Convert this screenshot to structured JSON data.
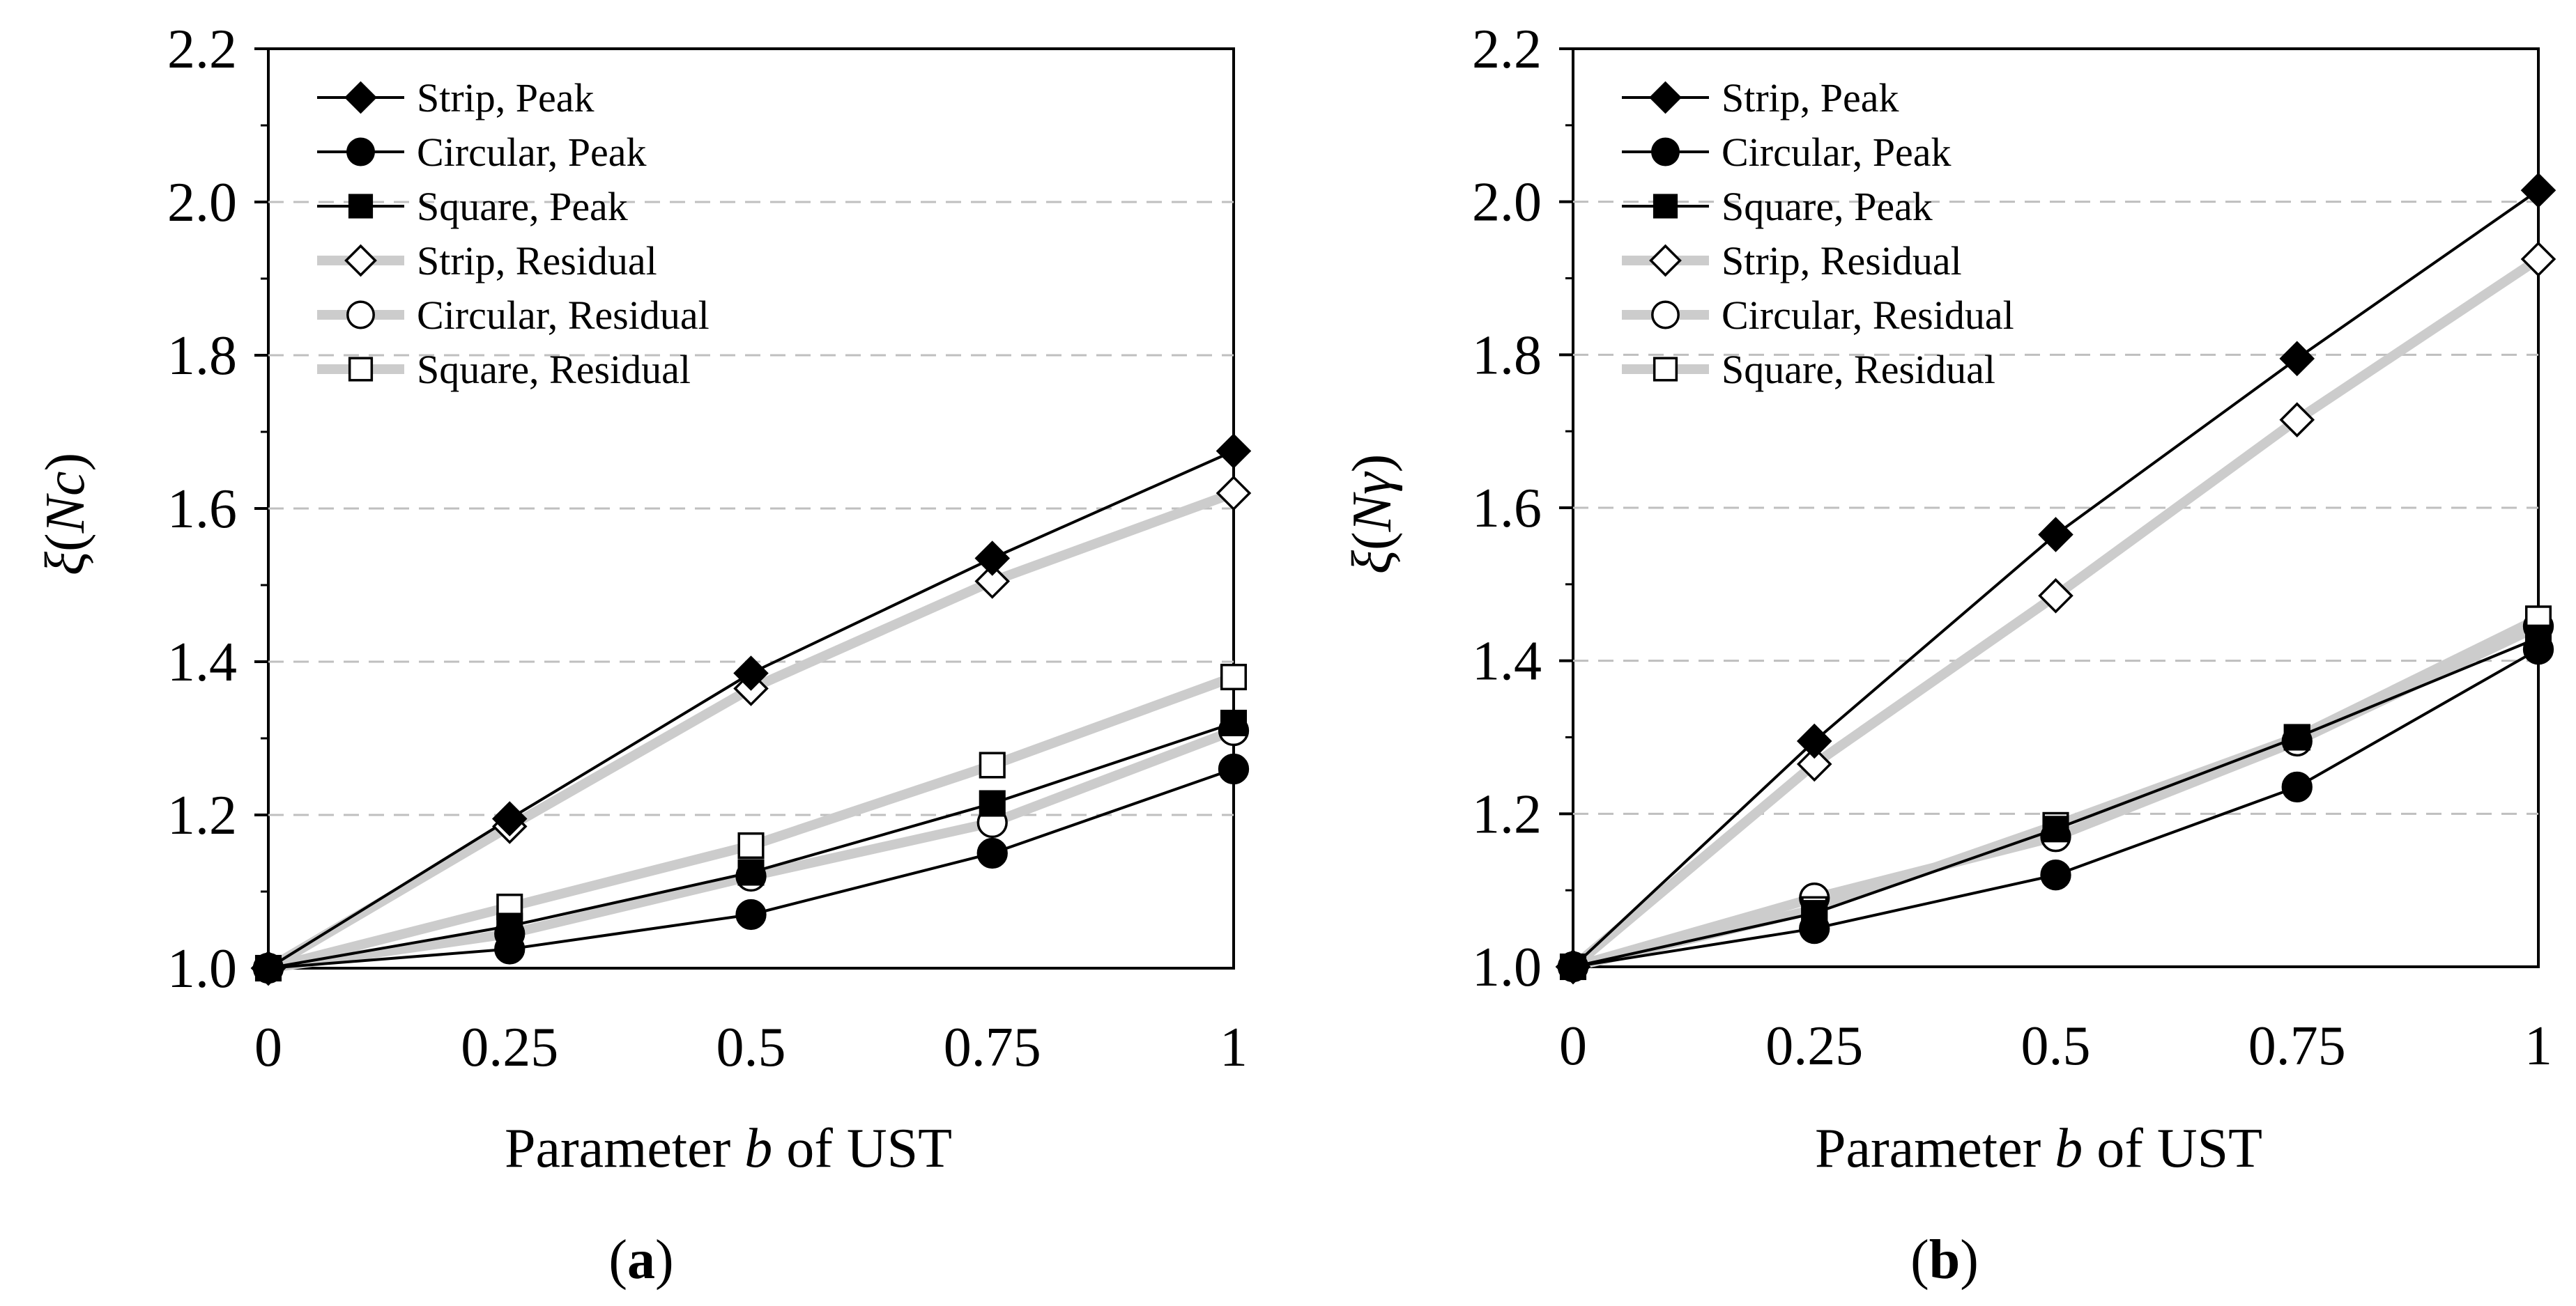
{
  "chart_data": [
    {
      "type": "line",
      "caption_label": "a",
      "ylabel_prefix": "ξ",
      "ylabel_arg": "Nc",
      "xlabel_prefix": "Parameter ",
      "xlabel_var": "b",
      "xlabel_suffix": " of UST",
      "categories": [
        "0",
        "0.25",
        "0.5",
        "0.75",
        "1"
      ],
      "x": [
        0,
        0.25,
        0.5,
        0.75,
        1
      ],
      "ylim": [
        1.0,
        2.2
      ],
      "yticks": [
        "1.0",
        "1.2",
        "1.4",
        "1.6",
        "1.8",
        "2.0",
        "2.2"
      ],
      "legend_position": "top-left",
      "series": [
        {
          "name": "Strip, Peak",
          "marker": "diamond",
          "filled": true,
          "line": "black",
          "values": [
            1.0,
            1.195,
            1.385,
            1.535,
            1.675
          ]
        },
        {
          "name": "Circular, Peak",
          "marker": "circle",
          "filled": true,
          "line": "black",
          "values": [
            1.0,
            1.025,
            1.07,
            1.15,
            1.26
          ]
        },
        {
          "name": "Square, Peak",
          "marker": "square",
          "filled": true,
          "line": "black",
          "values": [
            1.0,
            1.055,
            1.125,
            1.215,
            1.32
          ]
        },
        {
          "name": "Strip, Residual",
          "marker": "diamond",
          "filled": false,
          "line": "gray",
          "values": [
            1.0,
            1.185,
            1.365,
            1.505,
            1.62
          ]
        },
        {
          "name": "Circular, Residual",
          "marker": "circle",
          "filled": false,
          "line": "gray",
          "values": [
            1.0,
            1.045,
            1.12,
            1.19,
            1.31
          ]
        },
        {
          "name": "Square, Residual",
          "marker": "square",
          "filled": false,
          "line": "gray",
          "values": [
            1.0,
            1.08,
            1.16,
            1.265,
            1.38
          ]
        }
      ]
    },
    {
      "type": "line",
      "caption_label": "b",
      "ylabel_prefix": "ξ",
      "ylabel_arg": "Nγ",
      "xlabel_prefix": "Parameter ",
      "xlabel_var": "b",
      "xlabel_suffix": " of UST",
      "categories": [
        "0",
        "0.25",
        "0.5",
        "0.75",
        "1"
      ],
      "x": [
        0,
        0.25,
        0.5,
        0.75,
        1
      ],
      "ylim": [
        1.0,
        2.2
      ],
      "yticks": [
        "1.0",
        "1.2",
        "1.4",
        "1.6",
        "1.8",
        "2.0",
        "2.2"
      ],
      "legend_position": "top-left",
      "series": [
        {
          "name": "Strip, Peak",
          "marker": "diamond",
          "filled": true,
          "line": "black",
          "values": [
            1.0,
            1.295,
            1.565,
            1.795,
            2.015
          ]
        },
        {
          "name": "Circular, Peak",
          "marker": "circle",
          "filled": true,
          "line": "black",
          "values": [
            1.0,
            1.05,
            1.12,
            1.235,
            1.415
          ]
        },
        {
          "name": "Square, Peak",
          "marker": "square",
          "filled": true,
          "line": "black",
          "values": [
            1.0,
            1.07,
            1.18,
            1.3,
            1.43
          ]
        },
        {
          "name": "Strip, Residual",
          "marker": "diamond",
          "filled": false,
          "line": "gray",
          "values": [
            1.0,
            1.265,
            1.485,
            1.715,
            1.925
          ]
        },
        {
          "name": "Circular, Residual",
          "marker": "circle",
          "filled": false,
          "line": "gray",
          "values": [
            1.0,
            1.09,
            1.17,
            1.295,
            1.445
          ]
        },
        {
          "name": "Square, Residual",
          "marker": "square",
          "filled": false,
          "line": "gray",
          "values": [
            1.0,
            1.075,
            1.185,
            1.3,
            1.455
          ]
        }
      ]
    }
  ],
  "colors": {
    "peak_line": "#000000",
    "residual_line": "#cccccc",
    "grid": "#bfbfbf",
    "axis": "#000000"
  }
}
